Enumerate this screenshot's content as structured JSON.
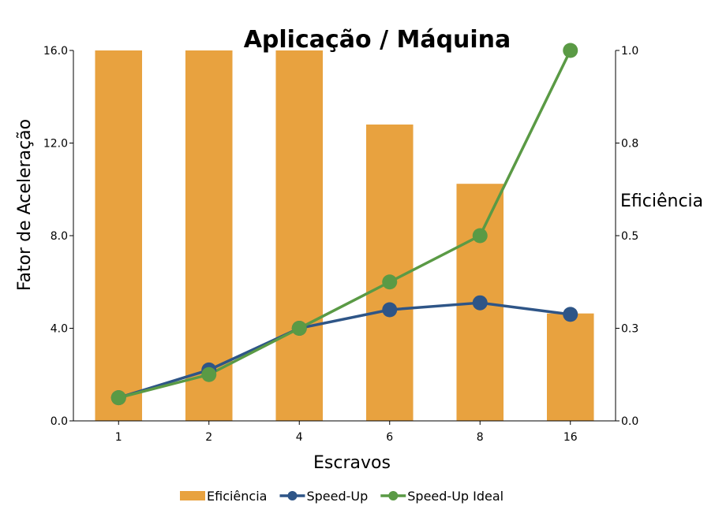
{
  "chart_data": {
    "type": "bar",
    "title": "Aplicação / Máquina",
    "xlabel": "Escravos",
    "ylabel": "Fator de Aceleração",
    "y2label": "Eficiência",
    "categories": [
      "1",
      "2",
      "4",
      "6",
      "8",
      "16"
    ],
    "ylim": [
      0,
      16
    ],
    "y2lim": [
      0,
      1.0
    ],
    "yticks": [
      "0.0",
      "4.0",
      "8.0",
      "12.0",
      "16.0"
    ],
    "y2ticks": [
      "0.0",
      "0.3",
      "0.5",
      "0.8",
      "1.0"
    ],
    "series": [
      {
        "name": "Eficiência",
        "type": "bar",
        "axis": "right",
        "color": "#e8a23f",
        "values": [
          1.0,
          1.0,
          1.0,
          0.8,
          0.64,
          0.29
        ]
      },
      {
        "name": "Speed-Up",
        "type": "line",
        "axis": "left",
        "color": "#2e5587",
        "values": [
          1.0,
          2.2,
          4.0,
          4.8,
          5.1,
          4.6
        ]
      },
      {
        "name": "Speed-Up Ideal",
        "type": "line",
        "axis": "left",
        "color": "#5a9a45",
        "values": [
          1.0,
          2.0,
          4.0,
          6.0,
          8.0,
          16.0
        ]
      }
    ],
    "grid": false,
    "legend_position": "bottom"
  }
}
